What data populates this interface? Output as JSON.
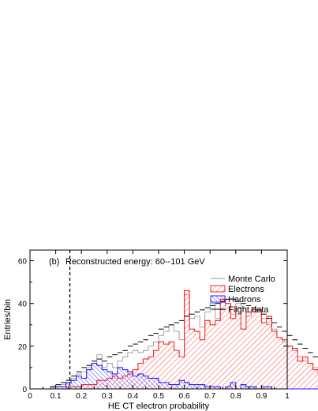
{
  "chart_data": {
    "type": "histogram",
    "panel_label": "(b)",
    "title": "Reconstructed energy: 60--101 GeV",
    "xlabel": "HE CT electron probability",
    "ylabel": "Entries/bin",
    "xlim": [
      0,
      1
    ],
    "ylim": [
      0,
      65
    ],
    "xticks": [
      0,
      0.1,
      0.2,
      0.3,
      0.4,
      0.5,
      0.6,
      0.7,
      0.8,
      0.9,
      1
    ],
    "xtick_labels": [
      "0",
      "0.1",
      "0.2",
      "0.3",
      "0.4",
      "0.5",
      "0.6",
      "0.7",
      "0.8",
      "0.9",
      "1"
    ],
    "yticks": [
      0,
      20,
      40,
      60
    ],
    "ytick_labels": [
      "0",
      "20",
      "40",
      "60"
    ],
    "cut_line_x": 0.155,
    "legend_position": "right",
    "bin_width": 0.02,
    "series": [
      {
        "name": "Monte Carlo",
        "style": "step",
        "color": "#999999",
        "values": [
          0,
          0,
          0,
          0,
          0,
          1,
          2,
          3,
          5,
          7,
          8,
          10,
          12,
          16,
          10,
          12,
          10,
          13,
          15,
          17,
          18,
          17,
          18,
          20,
          22,
          25,
          27,
          30,
          27,
          23,
          44,
          33,
          34,
          29,
          36,
          40,
          33,
          37,
          40,
          35,
          40,
          38,
          34,
          36,
          37,
          33,
          30,
          28,
          24,
          22,
          20,
          18,
          15,
          13,
          12,
          10,
          8,
          6,
          5,
          3,
          2,
          1,
          1,
          0,
          0,
          0,
          0,
          0,
          0,
          0,
          0,
          0,
          0,
          0,
          0,
          0,
          0,
          0,
          0,
          0,
          0,
          0,
          0,
          0,
          0,
          0,
          0,
          0,
          0,
          0,
          0,
          0,
          0,
          0,
          0,
          0,
          0,
          0,
          0,
          0
        ]
      },
      {
        "name": "Electrons",
        "style": "hatched",
        "color": "#ff2020",
        "values": [
          0,
          0,
          0,
          0,
          0,
          0,
          0,
          1,
          1,
          1,
          2,
          2,
          2,
          4,
          4,
          5,
          6,
          5,
          6,
          7,
          9,
          12,
          14,
          15,
          18,
          22,
          21,
          22,
          18,
          15,
          46,
          28,
          27,
          23,
          32,
          30,
          32,
          42,
          40,
          33,
          38,
          28,
          36,
          37,
          37,
          31,
          34,
          27,
          24,
          23,
          20,
          19,
          13,
          15,
          12,
          9,
          7,
          7,
          7,
          5,
          4,
          3,
          3,
          2,
          2,
          1,
          2,
          1,
          1,
          1,
          0,
          1,
          1,
          1,
          1,
          1,
          0,
          0,
          0,
          0,
          0,
          0,
          0,
          0,
          0,
          0,
          0,
          0,
          0,
          0,
          0,
          0,
          0,
          0,
          0,
          0,
          0,
          0,
          0,
          0
        ]
      },
      {
        "name": "Hadrons",
        "style": "hatched",
        "color": "#2020ff",
        "values": [
          0,
          0,
          0,
          0,
          1,
          1,
          1,
          3,
          4,
          6,
          5,
          9,
          12,
          11,
          9,
          8,
          7,
          10,
          9,
          8,
          6,
          7,
          6,
          5,
          5,
          3,
          3,
          2,
          2,
          4,
          3,
          2,
          2,
          2,
          1,
          1,
          1,
          0,
          1,
          3,
          0,
          2,
          1,
          1,
          0,
          1,
          1,
          0,
          0,
          0,
          0,
          0,
          0,
          0,
          0,
          0,
          0,
          0,
          0,
          0,
          0,
          0,
          0,
          0,
          0,
          0,
          0,
          0,
          0,
          0,
          0,
          0,
          0,
          0,
          0,
          0,
          0,
          0,
          0,
          0,
          0,
          0,
          0,
          0,
          0,
          0,
          0,
          0,
          0,
          0,
          0,
          0,
          0,
          0,
          0,
          0,
          0,
          0,
          0,
          0
        ]
      },
      {
        "name": "Flight data",
        "style": "dash",
        "color": "#000000",
        "values": [
          0,
          0,
          0,
          0,
          1,
          2,
          3,
          4,
          6,
          8,
          10,
          11,
          13,
          14,
          13,
          15,
          16,
          17,
          18,
          20,
          21,
          22,
          23,
          25,
          26,
          28,
          29,
          30,
          31,
          32,
          34,
          35,
          36,
          37,
          38,
          39,
          40,
          41,
          42,
          42,
          41,
          40,
          39,
          38,
          37,
          35,
          33,
          31,
          29,
          27,
          25,
          23,
          21,
          19,
          17,
          15,
          13,
          11,
          10,
          8,
          7,
          6,
          5,
          4,
          3,
          2,
          2,
          1,
          1,
          1,
          0,
          0,
          0,
          0,
          0,
          0,
          0,
          0,
          0,
          0,
          0,
          0,
          0,
          0,
          0,
          0,
          0,
          0,
          0,
          0,
          0,
          0,
          0,
          0,
          0,
          0,
          0,
          0,
          0,
          0
        ]
      }
    ]
  }
}
